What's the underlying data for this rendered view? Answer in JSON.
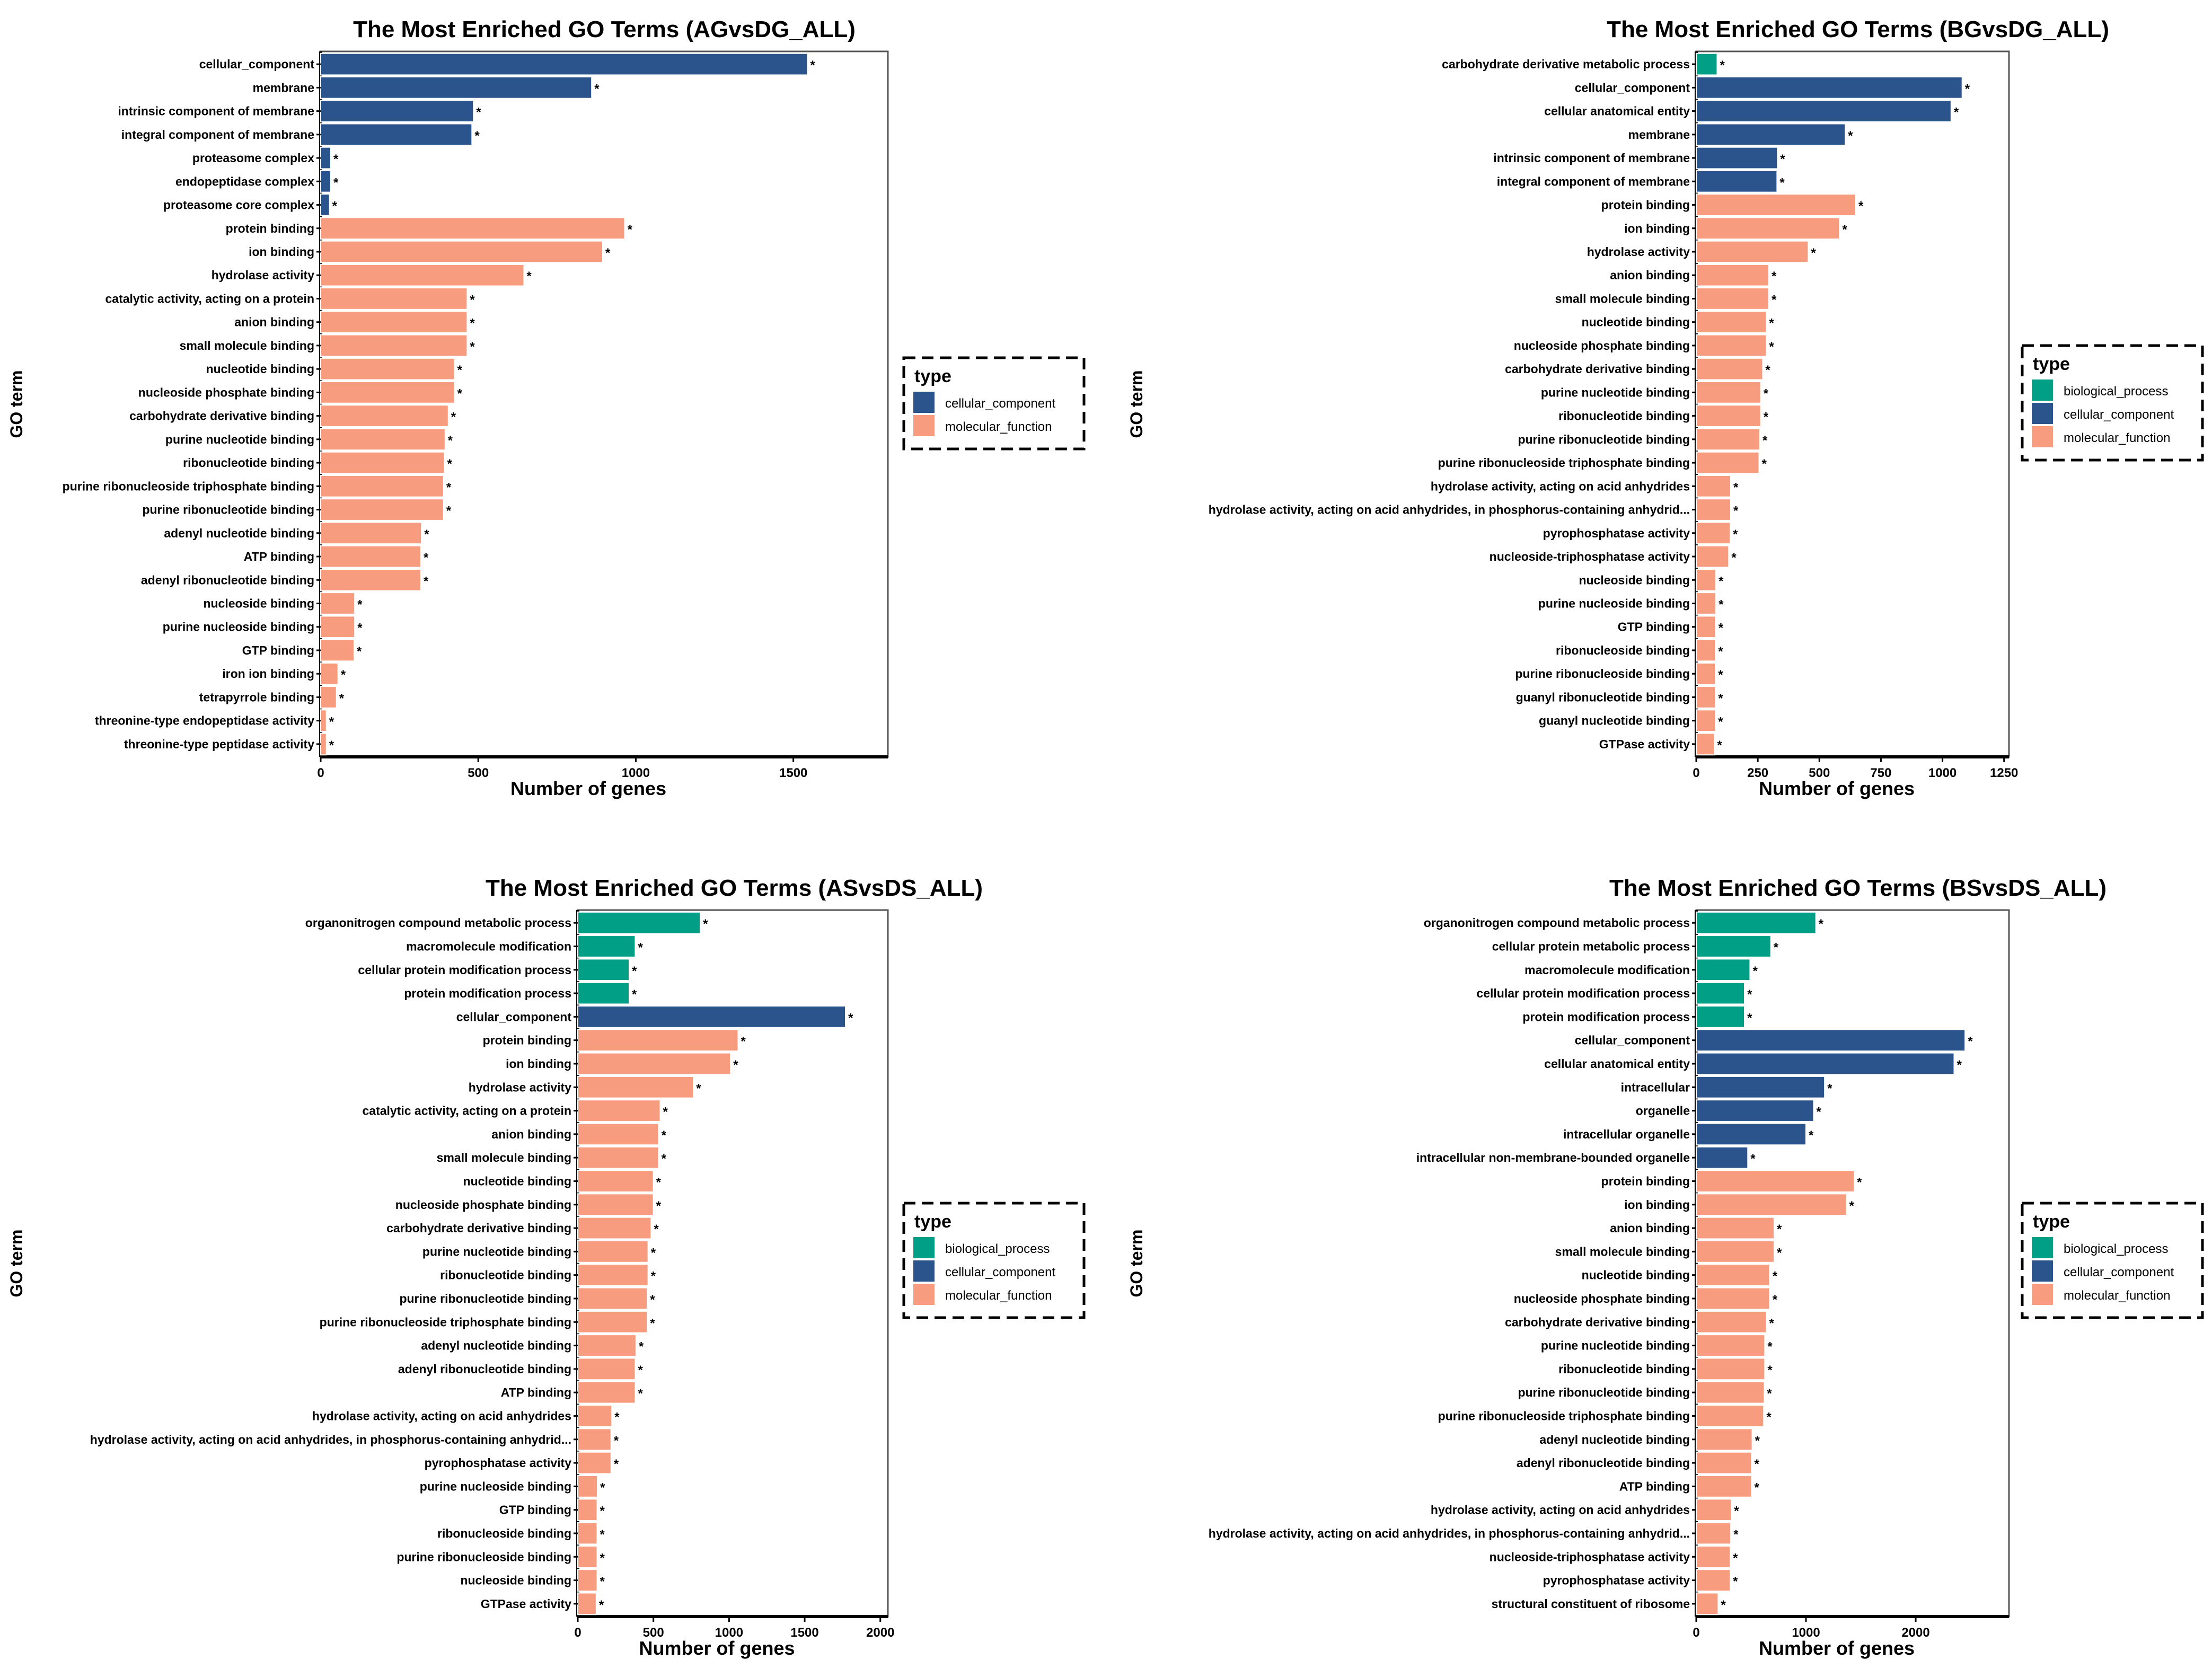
{
  "colors": {
    "biological_process": "#009F86",
    "cellular_component": "#2B548C",
    "molecular_function": "#F89C7F",
    "axis": "#000000",
    "panel_border": "#555555"
  },
  "chart_data": [
    {
      "type": "bar",
      "orientation": "horizontal",
      "title": "The Most Enriched GO Terms (AGvsDG_ALL)",
      "xlabel": "Number of genes",
      "ylabel": "GO term",
      "xlim": [
        0,
        1800
      ],
      "xticks": [
        0,
        500,
        1000,
        1500
      ],
      "legend_title": "type",
      "legend_entries": [
        {
          "key": "cellular_component",
          "label": "cellular_component"
        },
        {
          "key": "molecular_function",
          "label": "molecular_function"
        }
      ],
      "significance_marker": "*",
      "bars": [
        {
          "term": "cellular_component",
          "value": 1545,
          "type": "cellular_component"
        },
        {
          "term": "membrane",
          "value": 860,
          "type": "cellular_component"
        },
        {
          "term": "intrinsic component of membrane",
          "value": 485,
          "type": "cellular_component"
        },
        {
          "term": "integral component of membrane",
          "value": 480,
          "type": "cellular_component"
        },
        {
          "term": "proteasome complex",
          "value": 32,
          "type": "cellular_component"
        },
        {
          "term": "endopeptidase complex",
          "value": 32,
          "type": "cellular_component"
        },
        {
          "term": "proteasome core complex",
          "value": 28,
          "type": "cellular_component"
        },
        {
          "term": "protein binding",
          "value": 965,
          "type": "molecular_function"
        },
        {
          "term": "ion binding",
          "value": 895,
          "type": "molecular_function"
        },
        {
          "term": "hydrolase activity",
          "value": 645,
          "type": "molecular_function"
        },
        {
          "term": "catalytic activity, acting on a protein",
          "value": 465,
          "type": "molecular_function"
        },
        {
          "term": "anion binding",
          "value": 465,
          "type": "molecular_function"
        },
        {
          "term": "small molecule binding",
          "value": 465,
          "type": "molecular_function"
        },
        {
          "term": "nucleotide binding",
          "value": 425,
          "type": "molecular_function"
        },
        {
          "term": "nucleoside phosphate binding",
          "value": 425,
          "type": "molecular_function"
        },
        {
          "term": "carbohydrate derivative binding",
          "value": 405,
          "type": "molecular_function"
        },
        {
          "term": "purine nucleotide binding",
          "value": 395,
          "type": "molecular_function"
        },
        {
          "term": "ribonucleotide binding",
          "value": 393,
          "type": "molecular_function"
        },
        {
          "term": "purine ribonucleoside triphosphate binding",
          "value": 390,
          "type": "molecular_function"
        },
        {
          "term": "purine ribonucleotide binding",
          "value": 390,
          "type": "molecular_function"
        },
        {
          "term": "adenyl nucleotide binding",
          "value": 320,
          "type": "molecular_function"
        },
        {
          "term": "ATP binding",
          "value": 318,
          "type": "molecular_function"
        },
        {
          "term": "adenyl ribonucleotide binding",
          "value": 318,
          "type": "molecular_function"
        },
        {
          "term": "nucleoside binding",
          "value": 108,
          "type": "molecular_function"
        },
        {
          "term": "purine nucleoside binding",
          "value": 108,
          "type": "molecular_function"
        },
        {
          "term": "GTP binding",
          "value": 106,
          "type": "molecular_function"
        },
        {
          "term": "iron ion binding",
          "value": 55,
          "type": "molecular_function"
        },
        {
          "term": "tetrapyrrole binding",
          "value": 50,
          "type": "molecular_function"
        },
        {
          "term": "threonine-type endopeptidase activity",
          "value": 18,
          "type": "molecular_function"
        },
        {
          "term": "threonine-type peptidase activity",
          "value": 18,
          "type": "molecular_function"
        }
      ]
    },
    {
      "type": "bar",
      "orientation": "horizontal",
      "title": "The Most Enriched GO Terms (BGvsDG_ALL)",
      "xlabel": "Number of genes",
      "ylabel": "GO term",
      "xlim": [
        0,
        1270
      ],
      "xticks": [
        0,
        250,
        500,
        750,
        1000,
        1250
      ],
      "legend_title": "type",
      "legend_entries": [
        {
          "key": "biological_process",
          "label": "biological_process"
        },
        {
          "key": "cellular_component",
          "label": "cellular_component"
        },
        {
          "key": "molecular_function",
          "label": "molecular_function"
        }
      ],
      "significance_marker": "*",
      "bars": [
        {
          "term": "carbohydrate derivative metabolic process",
          "value": 85,
          "type": "biological_process"
        },
        {
          "term": "cellular_component",
          "value": 1080,
          "type": "cellular_component"
        },
        {
          "term": "cellular anatomical entity",
          "value": 1035,
          "type": "cellular_component"
        },
        {
          "term": "membrane",
          "value": 605,
          "type": "cellular_component"
        },
        {
          "term": "intrinsic component of membrane",
          "value": 330,
          "type": "cellular_component"
        },
        {
          "term": "integral component of membrane",
          "value": 328,
          "type": "cellular_component"
        },
        {
          "term": "protein binding",
          "value": 648,
          "type": "molecular_function"
        },
        {
          "term": "ion binding",
          "value": 582,
          "type": "molecular_function"
        },
        {
          "term": "hydrolase activity",
          "value": 455,
          "type": "molecular_function"
        },
        {
          "term": "anion binding",
          "value": 295,
          "type": "molecular_function"
        },
        {
          "term": "small molecule binding",
          "value": 295,
          "type": "molecular_function"
        },
        {
          "term": "nucleotide binding",
          "value": 285,
          "type": "molecular_function"
        },
        {
          "term": "nucleoside phosphate binding",
          "value": 285,
          "type": "molecular_function"
        },
        {
          "term": "carbohydrate derivative binding",
          "value": 270,
          "type": "molecular_function"
        },
        {
          "term": "purine nucleotide binding",
          "value": 262,
          "type": "molecular_function"
        },
        {
          "term": "ribonucleotide binding",
          "value": 262,
          "type": "molecular_function"
        },
        {
          "term": "purine ribonucleotide binding",
          "value": 258,
          "type": "molecular_function"
        },
        {
          "term": "purine ribonucleoside triphosphate binding",
          "value": 255,
          "type": "molecular_function"
        },
        {
          "term": "hydrolase activity, acting on acid anhydrides",
          "value": 140,
          "type": "molecular_function"
        },
        {
          "term": "hydrolase activity, acting on acid anhydrides, in phosphorus-containing anhydrid...",
          "value": 140,
          "type": "molecular_function"
        },
        {
          "term": "pyrophosphatase activity",
          "value": 138,
          "type": "molecular_function"
        },
        {
          "term": "nucleoside-triphosphatase activity",
          "value": 132,
          "type": "molecular_function"
        },
        {
          "term": "nucleoside binding",
          "value": 80,
          "type": "molecular_function"
        },
        {
          "term": "purine nucleoside binding",
          "value": 80,
          "type": "molecular_function"
        },
        {
          "term": "GTP binding",
          "value": 79,
          "type": "molecular_function"
        },
        {
          "term": "ribonucleoside binding",
          "value": 78,
          "type": "molecular_function"
        },
        {
          "term": "purine ribonucleoside binding",
          "value": 78,
          "type": "molecular_function"
        },
        {
          "term": "guanyl ribonucleotide binding",
          "value": 78,
          "type": "molecular_function"
        },
        {
          "term": "guanyl nucleotide binding",
          "value": 78,
          "type": "molecular_function"
        },
        {
          "term": "GTPase activity",
          "value": 74,
          "type": "molecular_function"
        }
      ]
    },
    {
      "type": "bar",
      "orientation": "horizontal",
      "title": "The Most Enriched GO Terms (ASvsDS_ALL)",
      "xlabel": "Number of genes",
      "ylabel": "GO term",
      "xlim": [
        0,
        2050
      ],
      "xticks": [
        0,
        500,
        1000,
        1500,
        2000
      ],
      "legend_title": "type",
      "legend_entries": [
        {
          "key": "biological_process",
          "label": "biological_process"
        },
        {
          "key": "cellular_component",
          "label": "cellular_component"
        },
        {
          "key": "molecular_function",
          "label": "molecular_function"
        }
      ],
      "significance_marker": "*",
      "bars": [
        {
          "term": "organonitrogen compound metabolic process",
          "value": 810,
          "type": "biological_process"
        },
        {
          "term": "macromolecule modification",
          "value": 380,
          "type": "biological_process"
        },
        {
          "term": "cellular protein modification process",
          "value": 340,
          "type": "biological_process"
        },
        {
          "term": "protein modification process",
          "value": 340,
          "type": "biological_process"
        },
        {
          "term": "cellular_component",
          "value": 1770,
          "type": "cellular_component"
        },
        {
          "term": "protein binding",
          "value": 1060,
          "type": "molecular_function"
        },
        {
          "term": "ion binding",
          "value": 1010,
          "type": "molecular_function"
        },
        {
          "term": "hydrolase activity",
          "value": 765,
          "type": "molecular_function"
        },
        {
          "term": "catalytic activity, acting on a protein",
          "value": 545,
          "type": "molecular_function"
        },
        {
          "term": "anion binding",
          "value": 535,
          "type": "molecular_function"
        },
        {
          "term": "small molecule binding",
          "value": 535,
          "type": "molecular_function"
        },
        {
          "term": "nucleotide binding",
          "value": 500,
          "type": "molecular_function"
        },
        {
          "term": "nucleoside phosphate binding",
          "value": 500,
          "type": "molecular_function"
        },
        {
          "term": "carbohydrate derivative binding",
          "value": 485,
          "type": "molecular_function"
        },
        {
          "term": "purine nucleotide binding",
          "value": 465,
          "type": "molecular_function"
        },
        {
          "term": "ribonucleotide binding",
          "value": 465,
          "type": "molecular_function"
        },
        {
          "term": "purine ribonucleotide binding",
          "value": 460,
          "type": "molecular_function"
        },
        {
          "term": "purine ribonucleoside triphosphate binding",
          "value": 460,
          "type": "molecular_function"
        },
        {
          "term": "adenyl nucleotide binding",
          "value": 385,
          "type": "molecular_function"
        },
        {
          "term": "adenyl ribonucleotide binding",
          "value": 380,
          "type": "molecular_function"
        },
        {
          "term": "ATP binding",
          "value": 380,
          "type": "molecular_function"
        },
        {
          "term": "hydrolase activity, acting on acid anhydrides",
          "value": 225,
          "type": "molecular_function"
        },
        {
          "term": "hydrolase activity, acting on acid anhydrides, in phosphorus-containing anhydrid...",
          "value": 220,
          "type": "molecular_function"
        },
        {
          "term": "pyrophosphatase activity",
          "value": 220,
          "type": "molecular_function"
        },
        {
          "term": "purine nucleoside binding",
          "value": 130,
          "type": "molecular_function"
        },
        {
          "term": "GTP binding",
          "value": 128,
          "type": "molecular_function"
        },
        {
          "term": "ribonucleoside binding",
          "value": 128,
          "type": "molecular_function"
        },
        {
          "term": "purine ribonucleoside binding",
          "value": 128,
          "type": "molecular_function"
        },
        {
          "term": "nucleoside binding",
          "value": 128,
          "type": "molecular_function"
        },
        {
          "term": "GTPase activity",
          "value": 122,
          "type": "molecular_function"
        }
      ]
    },
    {
      "type": "bar",
      "orientation": "horizontal",
      "title": "The Most Enriched GO Terms (BSvsDS_ALL)",
      "xlabel": "Number of genes",
      "ylabel": "GO term",
      "xlim": [
        0,
        2850
      ],
      "xticks": [
        0,
        1000,
        2000
      ],
      "legend_title": "type",
      "legend_entries": [
        {
          "key": "biological_process",
          "label": "biological_process"
        },
        {
          "key": "cellular_component",
          "label": "cellular_component"
        },
        {
          "key": "molecular_function",
          "label": "molecular_function"
        }
      ],
      "significance_marker": "*",
      "bars": [
        {
          "term": "organonitrogen compound metabolic process",
          "value": 1090,
          "type": "biological_process"
        },
        {
          "term": "cellular protein metabolic process",
          "value": 680,
          "type": "biological_process"
        },
        {
          "term": "macromolecule modification",
          "value": 490,
          "type": "biological_process"
        },
        {
          "term": "cellular protein modification process",
          "value": 440,
          "type": "biological_process"
        },
        {
          "term": "protein modification process",
          "value": 440,
          "type": "biological_process"
        },
        {
          "term": "cellular_component",
          "value": 2450,
          "type": "cellular_component"
        },
        {
          "term": "cellular anatomical entity",
          "value": 2350,
          "type": "cellular_component"
        },
        {
          "term": "intracellular",
          "value": 1170,
          "type": "cellular_component"
        },
        {
          "term": "organelle",
          "value": 1070,
          "type": "cellular_component"
        },
        {
          "term": "intracellular organelle",
          "value": 1000,
          "type": "cellular_component"
        },
        {
          "term": "intracellular non-membrane-bounded organelle",
          "value": 470,
          "type": "cellular_component"
        },
        {
          "term": "protein binding",
          "value": 1440,
          "type": "molecular_function"
        },
        {
          "term": "ion binding",
          "value": 1370,
          "type": "molecular_function"
        },
        {
          "term": "anion binding",
          "value": 710,
          "type": "molecular_function"
        },
        {
          "term": "small molecule binding",
          "value": 710,
          "type": "molecular_function"
        },
        {
          "term": "nucleotide binding",
          "value": 670,
          "type": "molecular_function"
        },
        {
          "term": "nucleoside phosphate binding",
          "value": 670,
          "type": "molecular_function"
        },
        {
          "term": "carbohydrate derivative binding",
          "value": 640,
          "type": "molecular_function"
        },
        {
          "term": "purine nucleotide binding",
          "value": 625,
          "type": "molecular_function"
        },
        {
          "term": "ribonucleotide binding",
          "value": 625,
          "type": "molecular_function"
        },
        {
          "term": "purine ribonucleotide binding",
          "value": 620,
          "type": "molecular_function"
        },
        {
          "term": "purine ribonucleoside triphosphate binding",
          "value": 615,
          "type": "molecular_function"
        },
        {
          "term": "adenyl nucleotide binding",
          "value": 510,
          "type": "molecular_function"
        },
        {
          "term": "adenyl ribonucleotide binding",
          "value": 505,
          "type": "molecular_function"
        },
        {
          "term": "ATP binding",
          "value": 505,
          "type": "molecular_function"
        },
        {
          "term": "hydrolase activity, acting on acid anhydrides",
          "value": 320,
          "type": "molecular_function"
        },
        {
          "term": "hydrolase activity, acting on acid anhydrides, in phosphorus-containing anhydrid...",
          "value": 315,
          "type": "molecular_function"
        },
        {
          "term": "nucleoside-triphosphatase activity",
          "value": 310,
          "type": "molecular_function"
        },
        {
          "term": "pyrophosphatase activity",
          "value": 310,
          "type": "molecular_function"
        },
        {
          "term": "structural constituent of ribosome",
          "value": 200,
          "type": "molecular_function"
        }
      ]
    }
  ]
}
